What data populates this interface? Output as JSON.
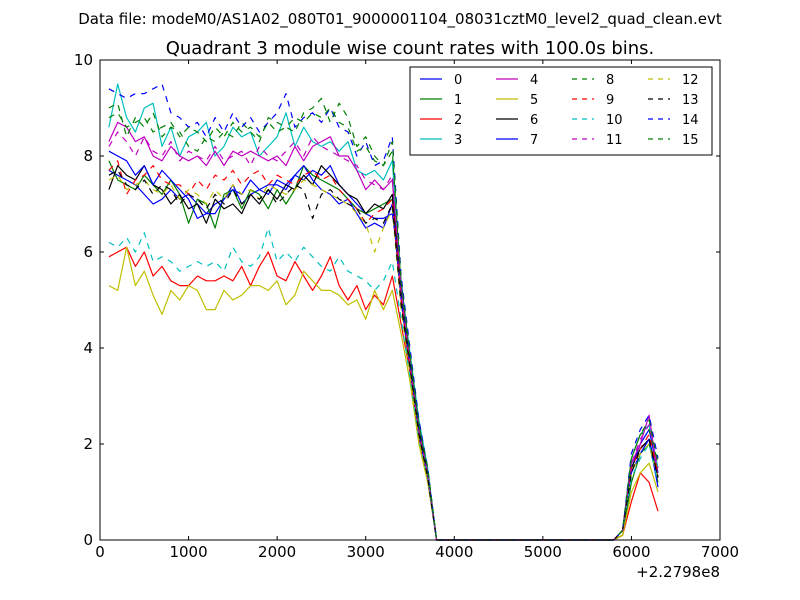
{
  "suptitle": "Data file: modeM0/AS1A02_080T01_9000001104_08031cztM0_level2_quad_clean.evt",
  "chart_data": {
    "type": "line",
    "title": "Quadrant 3 module wise count rates with 100.0s bins.",
    "xlabel": "",
    "ylabel": "",
    "xlim": [
      0,
      7000
    ],
    "ylim": [
      0,
      10
    ],
    "x_offset_label": "+2.2798e8",
    "xticks": [
      "0",
      "1000",
      "2000",
      "3000",
      "4000",
      "5000",
      "6000",
      "7000"
    ],
    "yticks": [
      "0",
      "2",
      "4",
      "6",
      "8",
      "10"
    ],
    "grid": false,
    "legend_position": "top-right",
    "x": [
      100,
      200,
      300,
      400,
      500,
      600,
      700,
      800,
      900,
      1000,
      1100,
      1200,
      1300,
      1400,
      1500,
      1600,
      1700,
      1800,
      1900,
      2000,
      2100,
      2200,
      2300,
      2400,
      2500,
      2600,
      2700,
      2800,
      2900,
      3000,
      3100,
      3200,
      3300,
      3400,
      3500,
      3600,
      3700,
      3800,
      3900,
      4000,
      4100,
      4200,
      4300,
      4400,
      4500,
      4600,
      4700,
      4800,
      4900,
      5000,
      5100,
      5200,
      5300,
      5400,
      5500,
      5600,
      5700,
      5800,
      5900,
      6000,
      6100,
      6200,
      6300
    ],
    "series": [
      {
        "name": "0",
        "color": "#0000ff",
        "dash": false,
        "values": [
          7.7,
          7.6,
          7.5,
          7.4,
          7.2,
          7.0,
          7.1,
          7.3,
          7.1,
          7.2,
          7.0,
          6.8,
          7.0,
          7.1,
          7.4,
          7.0,
          7.2,
          7.3,
          7.2,
          7.5,
          7.4,
          7.6,
          7.5,
          7.7,
          7.6,
          7.8,
          7.4,
          7.2,
          7.0,
          6.8,
          6.7,
          6.7,
          6.8,
          5.4,
          3.8,
          2.4,
          1.4,
          0,
          0,
          0,
          0,
          0,
          0,
          0,
          0,
          0,
          0,
          0,
          0,
          0,
          0,
          0,
          0,
          0,
          0,
          0,
          0,
          0,
          0.2,
          1.5,
          2.0,
          2.3,
          1.4
        ]
      },
      {
        "name": "1",
        "color": "#008000",
        "dash": false,
        "values": [
          7.9,
          7.5,
          7.4,
          7.3,
          7.6,
          7.4,
          7.2,
          7.5,
          7.2,
          6.6,
          7.1,
          7.0,
          6.5,
          7.2,
          7.3,
          6.9,
          7.3,
          7.2,
          6.9,
          7.3,
          7.0,
          7.3,
          7.8,
          7.6,
          7.5,
          7.4,
          7.3,
          7.1,
          6.9,
          6.8,
          6.9,
          7.0,
          7.1,
          5.0,
          3.5,
          2.1,
          1.3,
          0,
          0,
          0,
          0,
          0,
          0,
          0,
          0,
          0,
          0,
          0,
          0,
          0,
          0,
          0,
          0,
          0,
          0,
          0,
          0,
          0,
          0.1,
          1.2,
          1.8,
          2.0,
          1.2
        ]
      },
      {
        "name": "2",
        "color": "#ff0000",
        "dash": false,
        "values": [
          5.9,
          6.0,
          6.1,
          5.7,
          6.0,
          5.5,
          5.7,
          5.4,
          5.3,
          5.3,
          5.5,
          5.4,
          5.4,
          5.5,
          5.4,
          5.7,
          5.3,
          5.7,
          6.0,
          5.5,
          5.4,
          5.8,
          5.5,
          5.2,
          5.5,
          5.9,
          5.3,
          5.0,
          5.3,
          4.8,
          5.1,
          4.9,
          5.5,
          4.5,
          3.5,
          2.1,
          1.3,
          0,
          0,
          0,
          0,
          0,
          0,
          0,
          0,
          0,
          0,
          0,
          0,
          0,
          0,
          0,
          0,
          0,
          0,
          0,
          0,
          0,
          0.1,
          0.8,
          1.4,
          1.2,
          0.6
        ]
      },
      {
        "name": "3",
        "color": "#00bfbf",
        "dash": false,
        "values": [
          8.6,
          9.5,
          8.8,
          8.5,
          9.0,
          9.1,
          8.2,
          8.6,
          8.0,
          8.4,
          8.5,
          8.7,
          8.0,
          8.2,
          8.6,
          8.4,
          8.5,
          8.0,
          8.2,
          8.4,
          8.9,
          8.2,
          8.6,
          8.3,
          8.2,
          8.3,
          8.1,
          8.3,
          7.7,
          7.6,
          7.7,
          7.5,
          7.9,
          5.3,
          3.9,
          2.5,
          1.5,
          0,
          0,
          0,
          0,
          0,
          0,
          0,
          0,
          0,
          0,
          0,
          0,
          0,
          0,
          0,
          0,
          0,
          0,
          0,
          0,
          0,
          0.2,
          1.7,
          2.2,
          2.4,
          1.5
        ]
      },
      {
        "name": "4",
        "color": "#bf00bf",
        "dash": false,
        "values": [
          8.3,
          8.7,
          8.6,
          8.3,
          8.4,
          8.0,
          7.9,
          8.2,
          8.0,
          7.9,
          8.0,
          7.8,
          8.1,
          7.8,
          8.1,
          8.0,
          8.1,
          8.0,
          7.9,
          8.0,
          7.8,
          8.2,
          7.9,
          8.2,
          8.3,
          8.4,
          8.0,
          8.0,
          7.7,
          7.3,
          7.5,
          7.3,
          7.5,
          5.2,
          3.6,
          2.3,
          1.4,
          0,
          0,
          0,
          0,
          0,
          0,
          0,
          0,
          0,
          0,
          0,
          0,
          0,
          0,
          0,
          0,
          0,
          0,
          0,
          0,
          0,
          0.2,
          1.6,
          2.0,
          2.6,
          1.3
        ]
      },
      {
        "name": "5",
        "color": "#bfbf00",
        "dash": false,
        "values": [
          5.3,
          5.2,
          6.1,
          5.3,
          5.6,
          5.1,
          4.7,
          5.2,
          5.0,
          5.3,
          5.2,
          4.8,
          4.8,
          5.2,
          5.0,
          5.1,
          5.3,
          5.3,
          5.2,
          5.4,
          4.9,
          5.1,
          5.6,
          5.4,
          5.2,
          5.2,
          5.1,
          4.9,
          5.0,
          4.6,
          5.2,
          4.8,
          5.2,
          4.3,
          3.3,
          2.0,
          1.2,
          0,
          0,
          0,
          0,
          0,
          0,
          0,
          0,
          0,
          0,
          0,
          0,
          0,
          0,
          0,
          0,
          0,
          0,
          0,
          0,
          0,
          0.1,
          1.0,
          1.4,
          1.6,
          1.0
        ]
      },
      {
        "name": "6",
        "color": "#000000",
        "dash": false,
        "values": [
          7.3,
          7.8,
          7.6,
          7.5,
          7.8,
          7.4,
          7.3,
          7.0,
          7.2,
          6.9,
          7.0,
          6.6,
          7.1,
          6.9,
          7.0,
          6.8,
          7.2,
          7.0,
          7.3,
          7.1,
          7.4,
          7.3,
          7.6,
          7.4,
          7.8,
          7.6,
          7.4,
          7.2,
          7.1,
          6.8,
          7.0,
          6.9,
          7.2,
          5.1,
          3.7,
          2.3,
          1.4,
          0,
          0,
          0,
          0,
          0,
          0,
          0,
          0,
          0,
          0,
          0,
          0,
          0,
          0,
          0,
          0,
          0,
          0,
          0,
          0,
          0,
          0.2,
          1.5,
          1.9,
          2.1,
          1.3
        ]
      },
      {
        "name": "7",
        "color": "#0000ff",
        "dash": false,
        "values": [
          8.1,
          8.0,
          7.9,
          7.6,
          7.8,
          7.4,
          7.7,
          7.5,
          7.3,
          7.1,
          6.7,
          6.8,
          6.8,
          7.1,
          7.3,
          7.2,
          7.5,
          7.3,
          7.4,
          7.4,
          7.3,
          7.6,
          7.8,
          7.5,
          7.3,
          7.2,
          7.0,
          7.1,
          6.8,
          6.5,
          6.6,
          6.5,
          7.0,
          5.0,
          3.6,
          2.2,
          1.3,
          0,
          0,
          0,
          0,
          0,
          0,
          0,
          0,
          0,
          0,
          0,
          0,
          0,
          0,
          0,
          0,
          0,
          0,
          0,
          0,
          0,
          0.2,
          1.4,
          1.8,
          2.1,
          1.1
        ]
      },
      {
        "name": "8",
        "color": "#008000",
        "dash": true,
        "values": [
          9.0,
          9.1,
          8.4,
          8.8,
          8.6,
          8.9,
          8.4,
          8.6,
          8.5,
          8.2,
          8.1,
          8.4,
          8.3,
          8.5,
          8.4,
          8.7,
          8.5,
          8.3,
          8.8,
          8.7,
          8.6,
          8.5,
          8.9,
          9.0,
          9.2,
          8.7,
          9.1,
          8.8,
          8.2,
          8.4,
          8.0,
          7.8,
          8.1,
          5.3,
          3.8,
          2.4,
          1.4,
          0,
          0,
          0,
          0,
          0,
          0,
          0,
          0,
          0,
          0,
          0,
          0,
          0,
          0,
          0,
          0,
          0,
          0,
          0,
          0,
          0,
          0.2,
          1.7,
          2.2,
          2.3,
          1.6
        ]
      },
      {
        "name": "9",
        "color": "#ff0000",
        "dash": true,
        "values": [
          7.7,
          7.9,
          7.2,
          7.5,
          7.6,
          7.8,
          7.5,
          7.4,
          7.4,
          7.2,
          7.5,
          7.3,
          7.6,
          7.5,
          7.7,
          7.4,
          7.6,
          7.7,
          7.4,
          7.6,
          7.5,
          7.4,
          7.6,
          7.7,
          7.5,
          7.6,
          7.3,
          7.1,
          6.9,
          6.6,
          6.8,
          6.9,
          7.1,
          5.0,
          3.6,
          2.2,
          1.3,
          0,
          0,
          0,
          0,
          0,
          0,
          0,
          0,
          0,
          0,
          0,
          0,
          0,
          0,
          0,
          0,
          0,
          0,
          0,
          0,
          0,
          0.2,
          1.5,
          1.9,
          2.2,
          1.4
        ]
      },
      {
        "name": "10",
        "color": "#00bfbf",
        "dash": true,
        "values": [
          6.2,
          6.1,
          6.3,
          6.0,
          6.4,
          5.8,
          5.9,
          5.8,
          5.6,
          5.7,
          5.8,
          5.7,
          5.8,
          5.6,
          6.1,
          5.8,
          5.7,
          5.9,
          6.5,
          5.8,
          6.0,
          5.8,
          6.1,
          5.9,
          5.7,
          5.6,
          5.9,
          5.6,
          5.5,
          5.4,
          5.2,
          5.4,
          5.8,
          4.6,
          3.4,
          2.1,
          1.3,
          0,
          0,
          0,
          0,
          0,
          0,
          0,
          0,
          0,
          0,
          0,
          0,
          0,
          0,
          0,
          0,
          0,
          0,
          0,
          0,
          0,
          0.2,
          1.3,
          1.7,
          2.0,
          1.2
        ]
      },
      {
        "name": "11",
        "color": "#bf00bf",
        "dash": true,
        "values": [
          8.2,
          8.5,
          8.3,
          8.0,
          8.4,
          8.1,
          8.0,
          8.3,
          7.9,
          8.1,
          8.0,
          7.9,
          8.2,
          7.9,
          8.0,
          8.1,
          7.8,
          8.2,
          8.0,
          7.9,
          8.1,
          8.3,
          8.0,
          8.4,
          8.2,
          8.1,
          8.0,
          7.9,
          7.8,
          7.5,
          7.4,
          7.3,
          7.6,
          5.2,
          3.7,
          2.3,
          1.4,
          0,
          0,
          0,
          0,
          0,
          0,
          0,
          0,
          0,
          0,
          0,
          0,
          0,
          0,
          0,
          0,
          0,
          0,
          0,
          0,
          0,
          0.2,
          1.6,
          2.1,
          2.4,
          1.5
        ]
      },
      {
        "name": "12",
        "color": "#bfbf00",
        "dash": true,
        "values": [
          7.5,
          7.6,
          7.3,
          7.4,
          7.5,
          7.3,
          7.2,
          7.4,
          7.1,
          7.3,
          7.2,
          7.0,
          7.3,
          7.1,
          7.4,
          7.2,
          7.3,
          7.1,
          7.4,
          7.3,
          7.2,
          7.3,
          7.5,
          7.4,
          7.3,
          7.2,
          7.1,
          7.0,
          6.8,
          6.6,
          6.0,
          6.5,
          6.9,
          4.8,
          3.5,
          2.1,
          1.3,
          0,
          0,
          0,
          0,
          0,
          0,
          0,
          0,
          0,
          0,
          0,
          0,
          0,
          0,
          0,
          0,
          0,
          0,
          0,
          0,
          0,
          0.2,
          1.4,
          1.8,
          2.0,
          1.3
        ]
      },
      {
        "name": "13",
        "color": "#000000",
        "dash": true,
        "values": [
          7.6,
          7.7,
          7.4,
          7.3,
          7.5,
          7.2,
          7.4,
          7.3,
          7.0,
          7.2,
          7.1,
          6.9,
          7.2,
          7.0,
          7.3,
          7.0,
          7.2,
          7.1,
          7.3,
          7.0,
          7.2,
          7.4,
          7.3,
          6.7,
          7.2,
          7.3,
          7.1,
          7.0,
          6.9,
          6.6,
          6.7,
          6.6,
          7.0,
          4.9,
          3.6,
          2.2,
          1.3,
          0,
          0,
          0,
          0,
          0,
          0,
          0,
          0,
          0,
          0,
          0,
          0,
          0,
          0,
          0,
          0,
          0,
          0,
          0,
          0,
          0,
          0.2,
          1.4,
          1.9,
          2.1,
          1.3
        ]
      },
      {
        "name": "14",
        "color": "#0000ff",
        "dash": true,
        "values": [
          9.4,
          9.3,
          9.2,
          9.3,
          9.3,
          9.4,
          9.5,
          8.9,
          8.8,
          8.6,
          8.7,
          8.4,
          8.8,
          8.5,
          8.9,
          8.6,
          8.8,
          8.5,
          8.7,
          8.9,
          9.3,
          8.6,
          8.8,
          8.9,
          8.7,
          9.0,
          8.6,
          8.5,
          8.0,
          8.3,
          7.8,
          7.9,
          8.4,
          5.5,
          4.0,
          2.5,
          1.5,
          0,
          0,
          0,
          0,
          0,
          0,
          0,
          0,
          0,
          0,
          0,
          0,
          0,
          0,
          0,
          0,
          0,
          0,
          0,
          0,
          0,
          0.2,
          1.8,
          2.3,
          2.6,
          1.7
        ]
      },
      {
        "name": "15",
        "color": "#008000",
        "dash": true,
        "values": [
          8.8,
          8.9,
          8.6,
          8.7,
          8.8,
          8.5,
          8.6,
          8.7,
          8.4,
          8.6,
          8.5,
          8.3,
          8.6,
          8.4,
          8.7,
          8.5,
          8.6,
          8.4,
          8.7,
          8.5,
          8.6,
          8.8,
          8.7,
          8.9,
          8.8,
          9.0,
          8.7,
          8.6,
          8.1,
          8.2,
          7.9,
          7.8,
          8.3,
          5.4,
          3.9,
          2.4,
          1.5,
          0,
          0,
          0,
          0,
          0,
          0,
          0,
          0,
          0,
          0,
          0,
          0,
          0,
          0,
          0,
          0,
          0,
          0,
          0,
          0,
          0,
          0.2,
          1.7,
          2.2,
          2.5,
          1.6
        ]
      }
    ]
  }
}
